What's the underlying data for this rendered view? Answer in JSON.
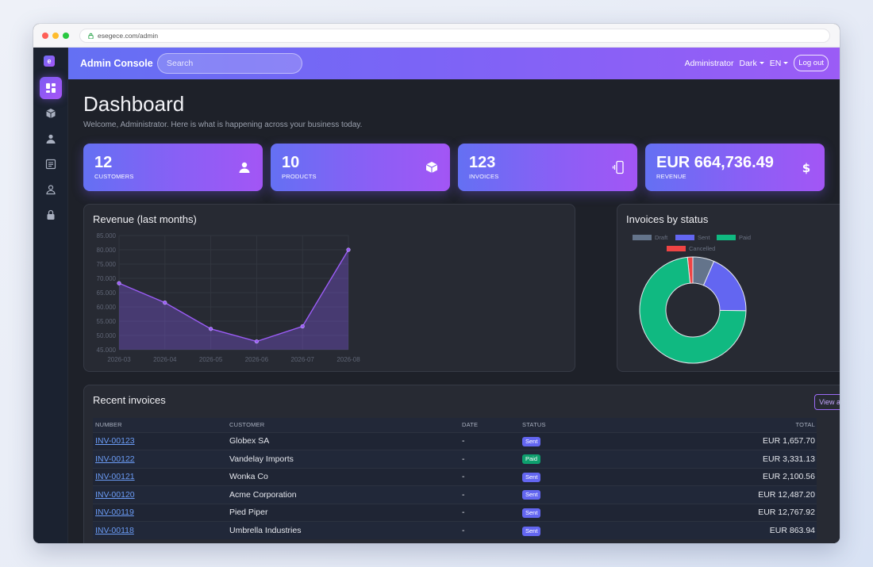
{
  "browser": {
    "url": "esegece.com/admin"
  },
  "sidebar": {
    "logo": "e",
    "items": [
      {
        "icon": "dashboard-icon",
        "active": true
      },
      {
        "icon": "box-icon",
        "active": false
      },
      {
        "icon": "customers-icon",
        "active": false
      },
      {
        "icon": "invoice-icon",
        "active": false
      },
      {
        "icon": "user-icon",
        "active": false
      },
      {
        "icon": "lock-icon",
        "active": false
      }
    ]
  },
  "topnav": {
    "title": "Admin Console",
    "search_placeholder": "Search",
    "user": "Administrator",
    "theme": "Dark",
    "language": "EN",
    "logout": "Log out"
  },
  "page": {
    "title": "Dashboard",
    "subtitle": "Welcome, Administrator. Here is what is happening across your business today."
  },
  "stats": [
    {
      "value": "12",
      "label": "CUSTOMERS",
      "icon": "customers-icon"
    },
    {
      "value": "10",
      "label": "PRODUCTS",
      "icon": "box-icon"
    },
    {
      "value": "123",
      "label": "INVOICES",
      "icon": "mobile-icon"
    },
    {
      "value": "EUR 664,736.49",
      "label": "REVENUE",
      "icon": "dollar-icon"
    }
  ],
  "revenue_card": {
    "title": "Revenue (last months)"
  },
  "status_card": {
    "title": "Invoices by status"
  },
  "chart_data": [
    {
      "type": "area",
      "title": "Revenue (last months)",
      "categories": [
        "2026-03",
        "2026-04",
        "2026-05",
        "2026-06",
        "2026-07",
        "2026-08"
      ],
      "values": [
        68300,
        61500,
        52300,
        47900,
        53200,
        80000
      ],
      "ylim": [
        45000,
        85000
      ],
      "yticks": [
        "85.000",
        "80.000",
        "75.000",
        "70.000",
        "65.000",
        "60.000",
        "55.000",
        "50.000",
        "45.000"
      ],
      "grid": true,
      "color": "#9b5cf6"
    },
    {
      "type": "pie",
      "title": "Invoices by status",
      "donut": true,
      "legend": "top",
      "series": [
        {
          "name": "Draft",
          "value": 8,
          "color": "#64748b"
        },
        {
          "name": "Sent",
          "value": 23,
          "color": "#6366f1"
        },
        {
          "name": "Paid",
          "value": 90,
          "color": "#10b981"
        },
        {
          "name": "Cancelled",
          "value": 2,
          "color": "#ef4444"
        }
      ]
    }
  ],
  "invoices": {
    "title": "Recent invoices",
    "view_all": "View all",
    "columns": [
      "NUMBER",
      "CUSTOMER",
      "DATE",
      "STATUS",
      "TOTAL"
    ],
    "rows": [
      {
        "number": "INV-00123",
        "customer": "Globex SA",
        "date": "-",
        "status": "Sent",
        "total": "EUR 1,657.70"
      },
      {
        "number": "INV-00122",
        "customer": "Vandelay Imports",
        "date": "-",
        "status": "Paid",
        "total": "EUR 3,331.13"
      },
      {
        "number": "INV-00121",
        "customer": "Wonka Co",
        "date": "-",
        "status": "Sent",
        "total": "EUR 2,100.56"
      },
      {
        "number": "INV-00120",
        "customer": "Acme Corporation",
        "date": "-",
        "status": "Sent",
        "total": "EUR 12,487.20"
      },
      {
        "number": "INV-00119",
        "customer": "Pied Piper",
        "date": "-",
        "status": "Sent",
        "total": "EUR 12,767.92"
      },
      {
        "number": "INV-00118",
        "customer": "Umbrella Industries",
        "date": "-",
        "status": "Sent",
        "total": "EUR 863.94"
      }
    ],
    "status_colors": {
      "Sent": "#6366f1",
      "Paid": "#0e9f6e"
    }
  }
}
